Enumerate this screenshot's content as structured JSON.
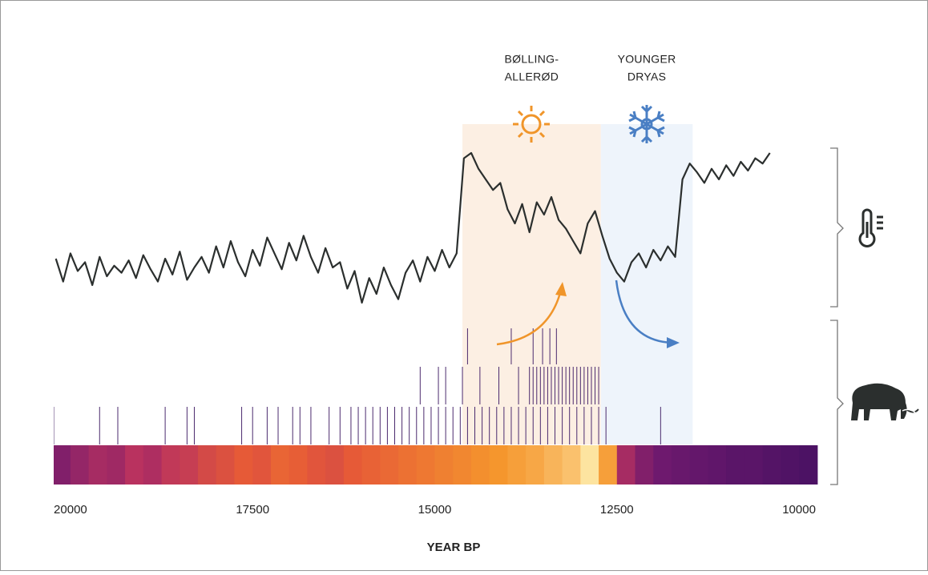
{
  "chart_data": {
    "type": "line",
    "x_label": "YEAR BP",
    "xlim": [
      20230,
      9660
    ],
    "xticks": [
      20000,
      17500,
      15000,
      12500,
      10000
    ],
    "ylim": [
      0,
      100
    ],
    "series": [
      {
        "color": "#2b2f2e",
        "x": [
          20200,
          20100,
          20000,
          19900,
          19800,
          19700,
          19600,
          19500,
          19400,
          19300,
          19200,
          19100,
          19000,
          18900,
          18800,
          18700,
          18600,
          18500,
          18400,
          18300,
          18200,
          18100,
          18000,
          17900,
          17800,
          17700,
          17600,
          17500,
          17400,
          17300,
          17200,
          17100,
          17000,
          16900,
          16800,
          16700,
          16600,
          16500,
          16400,
          16300,
          16200,
          16100,
          16000,
          15900,
          15800,
          15700,
          15600,
          15500,
          15400,
          15300,
          15200,
          15100,
          15000,
          14900,
          14800,
          14700,
          14600,
          14500,
          14400,
          14300,
          14200,
          14100,
          14000,
          13900,
          13800,
          13700,
          13600,
          13500,
          13400,
          13300,
          13200,
          13100,
          13000,
          12900,
          12800,
          12700,
          12600,
          12500,
          12400,
          12300,
          12200,
          12100,
          12000,
          11900,
          11800,
          11700,
          11600,
          11500,
          11400,
          11300,
          11200,
          11100,
          11000,
          10900,
          10800,
          10700,
          10600,
          10500,
          10400
        ],
        "values": [
          35,
          22,
          38,
          28,
          33,
          20,
          36,
          25,
          31,
          27,
          34,
          24,
          37,
          29,
          22,
          35,
          26,
          39,
          23,
          30,
          36,
          27,
          42,
          30,
          45,
          33,
          25,
          40,
          31,
          47,
          38,
          29,
          44,
          34,
          48,
          36,
          27,
          41,
          30,
          33,
          18,
          28,
          10,
          24,
          15,
          30,
          20,
          12,
          27,
          34,
          22,
          36,
          28,
          40,
          30,
          38,
          92,
          95,
          86,
          80,
          74,
          78,
          63,
          55,
          66,
          50,
          67,
          60,
          70,
          57,
          52,
          45,
          38,
          55,
          62,
          48,
          35,
          27,
          22,
          33,
          38,
          30,
          40,
          34,
          42,
          36,
          80,
          89,
          84,
          78,
          86,
          80,
          88,
          82,
          90,
          85,
          92,
          89,
          95
        ]
      }
    ],
    "periods": [
      {
        "label": [
          "BØLLING-",
          "ALLERØD"
        ],
        "span": [
          14620,
          12720
        ],
        "color": "#fcefe3"
      },
      {
        "label": [
          "YOUNGER",
          "DRYAS"
        ],
        "span": [
          12720,
          11460
        ],
        "color": "#eef4fb"
      }
    ],
    "mammoth_dates": [
      [
        14550,
        13950,
        13650,
        13520,
        13420,
        13330
      ],
      [
        15200,
        14950,
        14850,
        14620,
        14380,
        14120,
        13850,
        13700,
        13650,
        13600,
        13550,
        13500,
        13450,
        13400,
        13350,
        13300,
        13250,
        13200,
        13150,
        13100,
        13050,
        13000,
        12950,
        12900,
        12850,
        12800,
        12750
      ],
      [
        20230,
        19600,
        19350,
        18700,
        18400,
        18300,
        17650,
        17500,
        17300,
        17150,
        16950,
        16850,
        16700,
        16450,
        16300,
        16150,
        16050,
        15950,
        15850,
        15750,
        15650,
        15550,
        15450,
        15350,
        15250,
        15150,
        15050,
        14950,
        14850,
        14750,
        14650,
        14550,
        14450,
        14350,
        14250,
        14150,
        14050,
        13950,
        13850,
        13750,
        13650,
        13550,
        13450,
        13350,
        13250,
        13150,
        13050,
        12950,
        12850,
        12750,
        12650,
        11900
      ]
    ],
    "density": {
      "bins": [
        20250,
        20000,
        19750,
        19500,
        19250,
        19000,
        18750,
        18500,
        18250,
        18000,
        17750,
        17500,
        17250,
        17000,
        16750,
        16500,
        16250,
        16000,
        15750,
        15500,
        15250,
        15000,
        14750,
        14500,
        14250,
        14000,
        13750,
        13500,
        13250,
        13000,
        12750,
        12500,
        12250,
        12000,
        11750,
        11500,
        11250,
        11000,
        10750,
        10500,
        10250,
        10000,
        9750
      ],
      "values": [
        30,
        35,
        40,
        38,
        45,
        42,
        48,
        50,
        55,
        58,
        62,
        60,
        65,
        63,
        60,
        58,
        62,
        64,
        66,
        68,
        70,
        72,
        74,
        76,
        78,
        80,
        82,
        85,
        88,
        96,
        80,
        40,
        30,
        25,
        22,
        20,
        18,
        15,
        15,
        12,
        10,
        8
      ]
    }
  }
}
